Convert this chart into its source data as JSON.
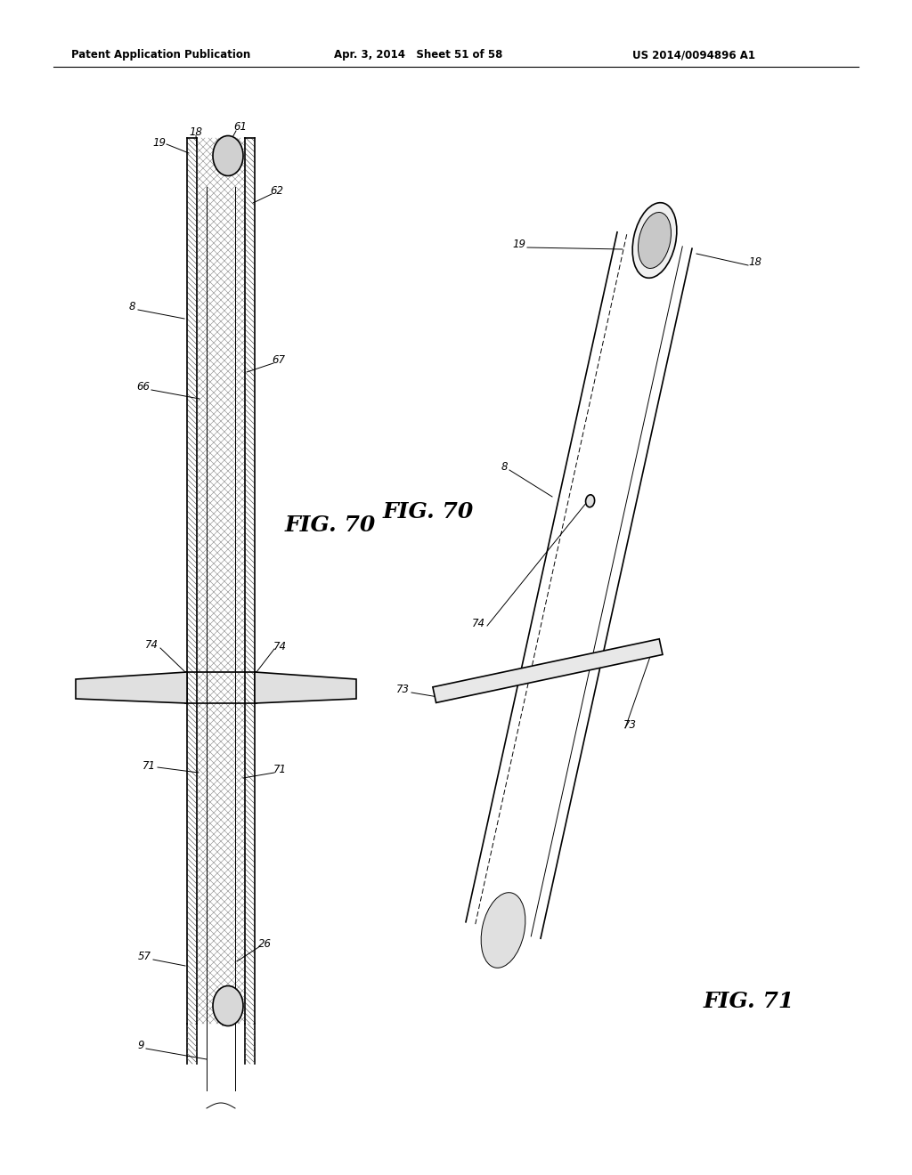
{
  "header_left": "Patent Application Publication",
  "header_mid": "Apr. 3, 2014   Sheet 51 of 58",
  "header_right": "US 2014/0094896 A1",
  "fig70_label": "FIG. 70",
  "fig71_label": "FIG. 71",
  "bg_color": "#ffffff",
  "line_color": "#000000",
  "hatch_color": "#555555",
  "label_color": "#000000"
}
